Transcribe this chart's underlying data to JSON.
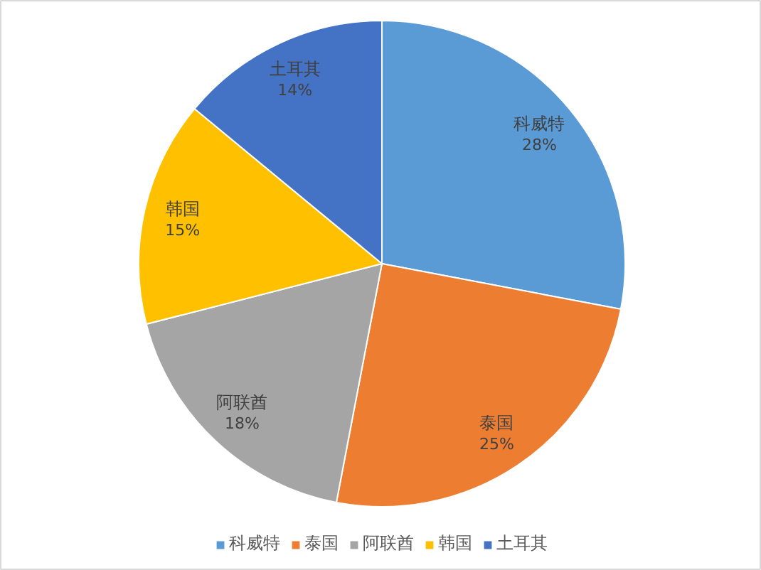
{
  "chart_data": {
    "type": "pie",
    "categories": [
      "科威特",
      "泰国",
      "阿联酋",
      "韩国",
      "土耳其"
    ],
    "values": [
      28,
      25,
      18,
      15,
      14
    ],
    "colors": [
      "#5b9bd5",
      "#ed7d31",
      "#a5a5a5",
      "#ffc000",
      "#4472c4"
    ],
    "value_labels": [
      "28%",
      "25%",
      "18%",
      "15%",
      "14%"
    ],
    "legend": "bottom"
  }
}
